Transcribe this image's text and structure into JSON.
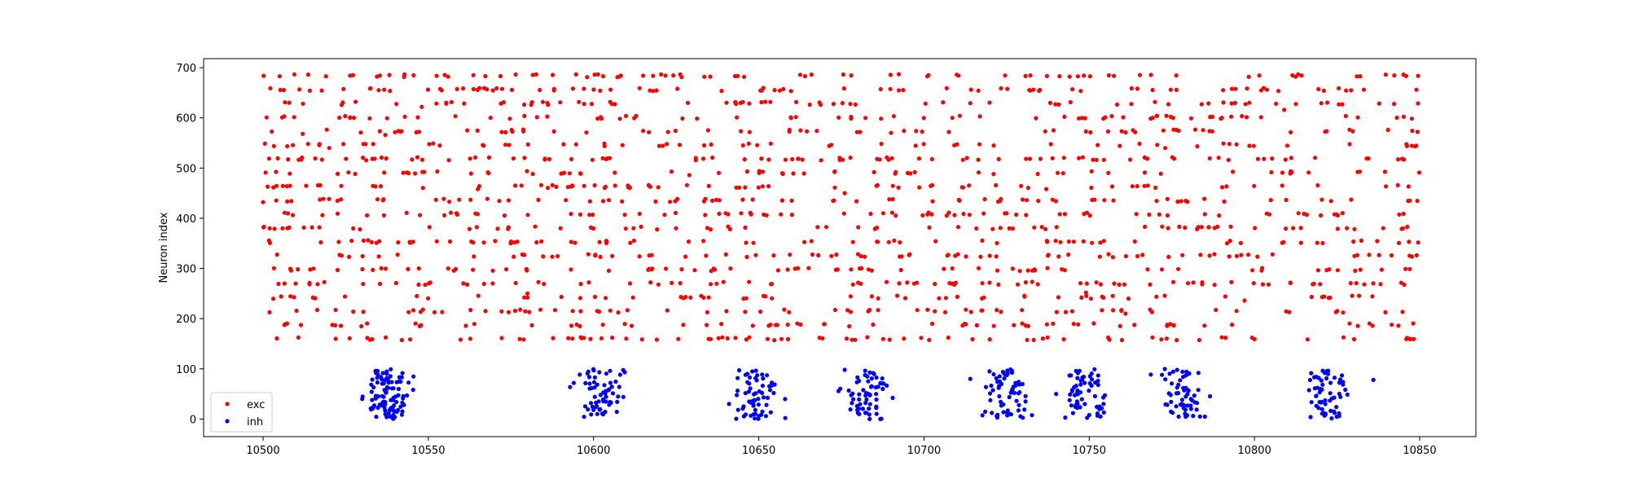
{
  "chart_data": {
    "type": "scatter",
    "title": "",
    "xlabel": "",
    "ylabel": "Neuron index",
    "xlim": [
      10482,
      10867
    ],
    "ylim": [
      -35,
      718
    ],
    "xticks": [
      10500,
      10550,
      10600,
      10650,
      10700,
      10750,
      10800,
      10850
    ],
    "yticks": [
      0,
      100,
      200,
      300,
      400,
      500,
      600,
      700
    ],
    "grid": false,
    "legend_position": "lower-left",
    "series": [
      {
        "name": "exc",
        "color": "#ff0000",
        "marker": "circle",
        "x_range": [
          10500,
          10850
        ],
        "y_range": [
          160,
          684
        ],
        "approx_points": 1500,
        "sample_points": [
          [
            10500,
            432
          ],
          [
            10502,
            380
          ],
          [
            10505,
            683
          ],
          [
            10512,
            568
          ],
          [
            10520,
            540
          ],
          [
            10528,
            632
          ],
          [
            10537,
            566
          ],
          [
            10548,
            622
          ],
          [
            10556,
            682
          ],
          [
            10565,
            458
          ],
          [
            10580,
            250
          ],
          [
            10590,
            380
          ],
          [
            10602,
            654
          ],
          [
            10615,
            574
          ],
          [
            10629,
            486
          ],
          [
            10640,
            410
          ],
          [
            10652,
            632
          ],
          [
            10664,
            683
          ],
          [
            10676,
            450
          ],
          [
            10690,
            570
          ],
          [
            10701,
            683
          ],
          [
            10713,
            520
          ],
          [
            10725,
            410
          ],
          [
            10737,
            458
          ],
          [
            10749,
            252
          ],
          [
            10761,
            210
          ],
          [
            10773,
            540
          ],
          [
            10785,
            408
          ],
          [
            10797,
            236
          ],
          [
            10809,
            616
          ],
          [
            10821,
            654
          ],
          [
            10832,
            683
          ],
          [
            10845,
            380
          ],
          [
            10849,
            656
          ]
        ]
      },
      {
        "name": "inh",
        "color": "#0000ff",
        "marker": "circle",
        "x_range": [
          10528,
          10838
        ],
        "y_range": [
          0,
          100
        ],
        "approx_points": 500,
        "burst_centers": [
          10537,
          10602,
          10649,
          10683,
          10725,
          10748,
          10778,
          10822
        ],
        "sample_points": [
          [
            10530,
            40
          ],
          [
            10534,
            96
          ],
          [
            10537,
            10
          ],
          [
            10541,
            60
          ],
          [
            10594,
            72
          ],
          [
            10600,
            18
          ],
          [
            10605,
            96
          ],
          [
            10609,
            44
          ],
          [
            10641,
            30
          ],
          [
            10646,
            88
          ],
          [
            10650,
            6
          ],
          [
            10658,
            2
          ],
          [
            10676,
            98
          ],
          [
            10680,
            12
          ],
          [
            10684,
            64
          ],
          [
            10714,
            80
          ],
          [
            10722,
            6
          ],
          [
            10728,
            36
          ],
          [
            10740,
            50
          ],
          [
            10746,
            96
          ],
          [
            10750,
            8
          ],
          [
            10772,
            88
          ],
          [
            10778,
            30
          ],
          [
            10783,
            58
          ],
          [
            10817,
            4
          ],
          [
            10822,
            96
          ],
          [
            10826,
            44
          ],
          [
            10836,
            78
          ]
        ]
      }
    ]
  }
}
